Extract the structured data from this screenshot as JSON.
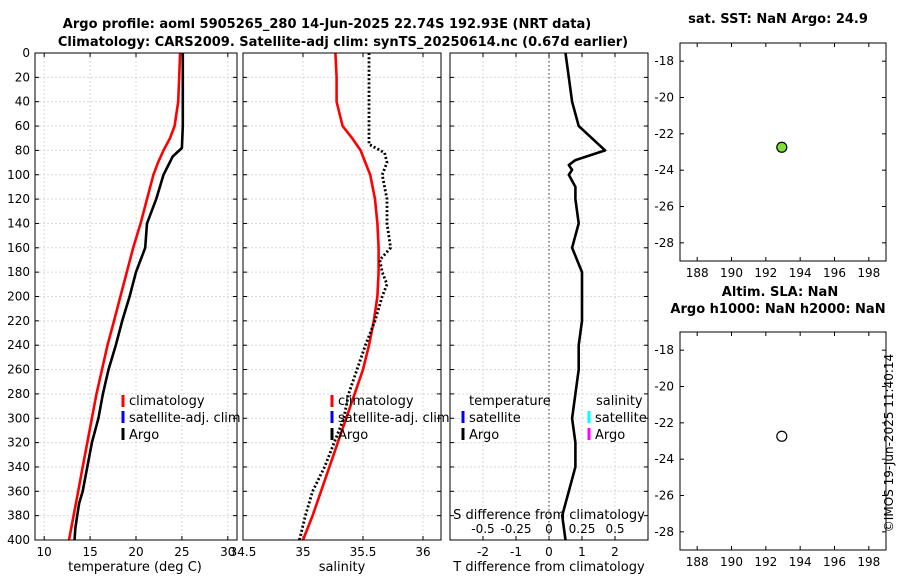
{
  "header": {
    "title_line1": "Argo profile: aoml 5905265_280 14-Jun-2025 22.74S 192.93E (NRT data)",
    "title_line2": "Climatology: CARS2009. Satellite-adj clim: synTS_20250614.nc (0.67d earlier)"
  },
  "colors": {
    "climatology": "#ff0000",
    "satellite_adj": "#0000ff",
    "argo": "#000000",
    "sat_salinity": "#00ffff",
    "argo_salinity": "#ff00ff",
    "sst_marker": "#7fe03a"
  },
  "legend_left": {
    "climatology": "climatology",
    "satellite": "satellite-adj. clim",
    "argo": "Argo"
  },
  "legend_diff": {
    "temperature_header": "temperature",
    "salinity_header": "salinity",
    "satellite": "satellite",
    "argo": "Argo"
  },
  "chart_data": [
    {
      "type": "line",
      "name": "temperature-profile",
      "xlabel": "temperature (deg C)",
      "ylabel": "depth",
      "xlim": [
        9,
        31
      ],
      "ylim": [
        400,
        0
      ],
      "xticks": [
        10,
        15,
        20,
        25,
        30
      ],
      "yticks": [
        0,
        20,
        40,
        60,
        80,
        100,
        120,
        140,
        160,
        180,
        200,
        220,
        240,
        260,
        280,
        300,
        320,
        340,
        360,
        380,
        400
      ],
      "series": [
        {
          "name": "climatology",
          "depth": [
            0,
            20,
            40,
            60,
            70,
            80,
            90,
            100,
            120,
            140,
            160,
            180,
            200,
            220,
            240,
            260,
            280,
            300,
            320,
            340,
            360,
            380,
            400
          ],
          "values": [
            24.8,
            24.7,
            24.6,
            24.2,
            23.7,
            23.0,
            22.4,
            21.9,
            21.2,
            20.5,
            19.7,
            19.0,
            18.3,
            17.6,
            16.9,
            16.3,
            15.7,
            15.2,
            14.7,
            14.2,
            13.7,
            13.2,
            12.7
          ]
        },
        {
          "name": "Argo",
          "depth": [
            0,
            20,
            40,
            60,
            78,
            85,
            100,
            120,
            140,
            160,
            180,
            200,
            220,
            240,
            260,
            280,
            300,
            320,
            340,
            360,
            370,
            380,
            390,
            400
          ],
          "values": [
            25.1,
            25.1,
            25.1,
            25.1,
            25.0,
            24.0,
            23.0,
            22.2,
            21.2,
            21.0,
            20.0,
            19.3,
            18.5,
            17.8,
            17.0,
            16.4,
            15.9,
            15.2,
            14.7,
            14.2,
            13.8,
            13.6,
            13.4,
            13.3
          ]
        }
      ]
    },
    {
      "type": "line",
      "name": "salinity-profile",
      "xlabel": "salinity",
      "ylabel": "depth",
      "xlim": [
        34.5,
        36.15
      ],
      "ylim": [
        400,
        0
      ],
      "xticks": [
        34.5,
        35,
        35.5,
        36
      ],
      "xticklabels": [
        "34.5",
        "35",
        "35.5",
        "36"
      ],
      "series": [
        {
          "name": "climatology",
          "depth": [
            0,
            20,
            40,
            60,
            70,
            80,
            90,
            100,
            120,
            140,
            160,
            180,
            200,
            220,
            240,
            260,
            280,
            300,
            320,
            340,
            360,
            380,
            400
          ],
          "values": [
            35.27,
            35.28,
            35.28,
            35.33,
            35.41,
            35.48,
            35.52,
            35.56,
            35.6,
            35.62,
            35.63,
            35.63,
            35.62,
            35.59,
            35.55,
            35.5,
            35.43,
            35.36,
            35.29,
            35.22,
            35.15,
            35.08,
            35.0
          ]
        },
        {
          "name": "Argo",
          "depth": [
            0,
            20,
            40,
            60,
            75,
            82,
            90,
            100,
            120,
            140,
            160,
            170,
            180,
            190,
            200,
            220,
            240,
            260,
            280,
            300,
            320,
            340,
            360,
            380,
            400
          ],
          "values": [
            35.55,
            35.55,
            35.55,
            35.55,
            35.55,
            35.68,
            35.7,
            35.66,
            35.7,
            35.7,
            35.73,
            35.64,
            35.66,
            35.7,
            35.66,
            35.6,
            35.52,
            35.45,
            35.38,
            35.34,
            35.26,
            35.18,
            35.08,
            35.02,
            34.97
          ]
        }
      ]
    },
    {
      "type": "line",
      "name": "difference-profile",
      "xlabel": "T difference from climatology",
      "xlabel_top": "S difference from climatology",
      "xlim": [
        -3,
        3
      ],
      "ylim": [
        400,
        0
      ],
      "xticks": [
        -2,
        -1,
        0,
        1,
        2
      ],
      "xticklabels_top": [
        "-0.5",
        "-0.25",
        "0",
        "0.25",
        "0.5"
      ],
      "series": [
        {
          "name": "T difference",
          "depth": [
            0,
            20,
            40,
            60,
            80,
            88,
            92,
            96,
            100,
            110,
            120,
            140,
            160,
            180,
            200,
            220,
            240,
            260,
            280,
            300,
            320,
            340,
            360,
            380,
            400
          ],
          "values": [
            0.5,
            0.6,
            0.7,
            0.9,
            1.7,
            0.8,
            0.6,
            0.7,
            0.6,
            0.8,
            0.8,
            0.9,
            0.7,
            1.0,
            1.0,
            1.0,
            0.9,
            0.9,
            0.8,
            0.7,
            0.8,
            0.8,
            0.6,
            0.4,
            0.5
          ]
        }
      ]
    },
    {
      "type": "scatter",
      "name": "sst-map",
      "title": "sat. SST: NaN Argo: 24.9",
      "xlim": [
        187,
        199
      ],
      "ylim": [
        -29,
        -17
      ],
      "xticks": [
        188,
        190,
        192,
        194,
        196,
        198
      ],
      "yticks": [
        -18,
        -20,
        -22,
        -24,
        -26,
        -28
      ],
      "points": [
        {
          "x": 192.93,
          "y": -22.74,
          "fill": "#7fe03a"
        }
      ]
    },
    {
      "type": "scatter",
      "name": "sla-map",
      "title": "Altim. SLA: NaN",
      "subtitle": "Argo h1000: NaN h2000: NaN",
      "xlim": [
        187,
        199
      ],
      "ylim": [
        -29,
        -17
      ],
      "xticks": [
        188,
        190,
        192,
        194,
        196,
        198
      ],
      "yticks": [
        -18,
        -20,
        -22,
        -24,
        -26,
        -28
      ],
      "points": [
        {
          "x": 192.93,
          "y": -22.74,
          "fill": "#ffffff"
        }
      ]
    }
  ],
  "watermark": "©IMOS 19-Jun-2025 11:40:14"
}
